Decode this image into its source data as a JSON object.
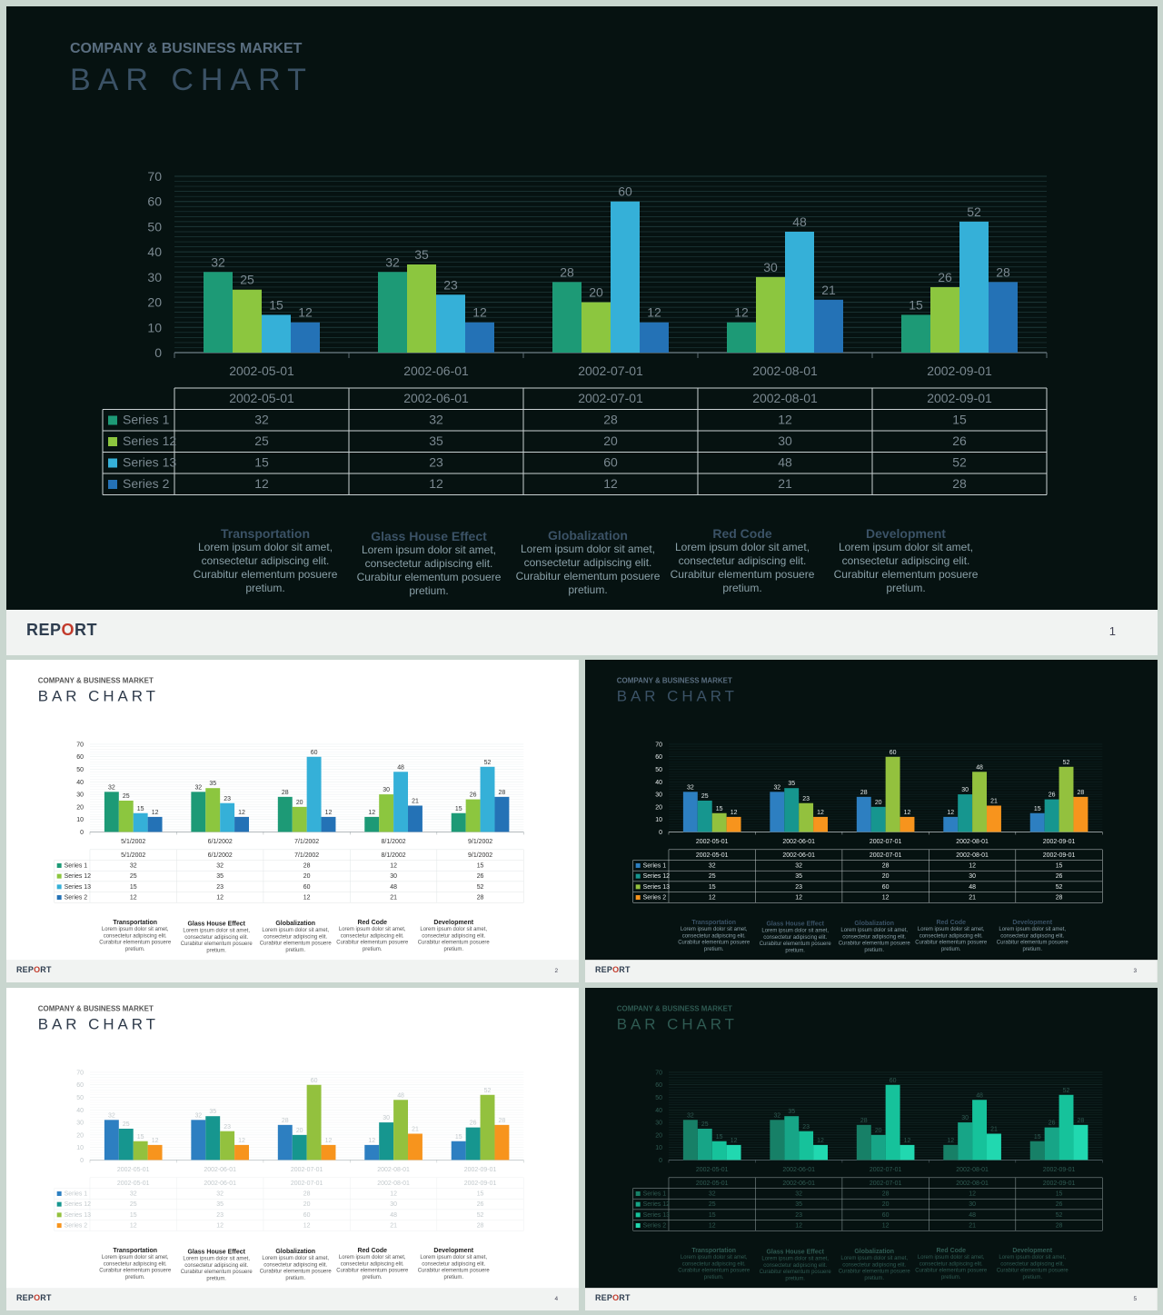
{
  "deck": {
    "subtitle": "COMPANY & BUSINESS MARKET",
    "title": "BAR CHART",
    "brand_prefix": "REP",
    "brand_o": "O",
    "brand_suffix": "RT",
    "columns": [
      {
        "title": "Transportation",
        "body": "Lorem ipsum dolor sit amet, consectetur adipiscing elit. Curabitur elementum posuere pretium."
      },
      {
        "title": "Glass House Effect",
        "body": "Lorem ipsum dolor sit amet, consectetur adipiscing elit. Curabitur elementum posuere pretium."
      },
      {
        "title": "Globalization",
        "body": "Lorem ipsum dolor sit amet, consectetur adipiscing elit. Curabitur elementum posuere pretium."
      },
      {
        "title": "Red Code",
        "body": "Lorem ipsum dolor sit amet, consectetur adipiscing elit. Curabitur elementum posuere pretium."
      },
      {
        "title": "Development",
        "body": "Lorem ipsum dolor sit amet, consectetur adipiscing elit. Curabitur elementum posuere pretium."
      }
    ]
  },
  "slides": [
    {
      "page": "1",
      "theme": "dark",
      "categories": [
        "2002-05-01",
        "2002-06-01",
        "2002-07-01",
        "2002-08-01",
        "2002-09-01"
      ],
      "colors": [
        "#1d9a76",
        "#8cc63f",
        "#35b0d8",
        "#2472b6"
      ],
      "axis_color": "#5f6e75",
      "grid_color": "#1f3a3a",
      "table_color": "#c9d1d3",
      "text_color": "#7a8890"
    },
    {
      "page": "2",
      "theme": "light",
      "categories": [
        "5/1/2002",
        "6/1/2002",
        "7/1/2002",
        "8/1/2002",
        "9/1/2002"
      ],
      "colors": [
        "#1d9a76",
        "#8cc63f",
        "#35b0d8",
        "#2472b6"
      ],
      "axis_color": "#9aa3a6",
      "grid_color": "#e7ecee",
      "table_color": "#e0e4e6",
      "text_color": "#333333"
    },
    {
      "page": "3",
      "theme": "dark",
      "categories": [
        "2002-05-01",
        "2002-06-01",
        "2002-07-01",
        "2002-08-01",
        "2002-09-01"
      ],
      "colors": [
        "#2d7fc1",
        "#16968f",
        "#93c13e",
        "#f7941d"
      ],
      "axis_color": "#c0c8ca",
      "grid_color": "#13292a",
      "table_color": "#c9d1d3",
      "text_color": "#e6ebec"
    },
    {
      "page": "4",
      "theme": "light",
      "categories": [
        "2002-05-01",
        "2002-06-01",
        "2002-07-01",
        "2002-08-01",
        "2002-09-01"
      ],
      "colors": [
        "#2d7fc1",
        "#16968f",
        "#93c13e",
        "#f7941d"
      ],
      "axis_color": "#b7bfc2",
      "grid_color": "#eef1f2",
      "table_color": "#eceff0",
      "text_color": "#c2c9cc"
    },
    {
      "page": "5",
      "theme": "dark",
      "categories": [
        "2002-05-01",
        "2002-06-01",
        "2002-07-01",
        "2002-08-01",
        "2002-09-01"
      ],
      "colors": [
        "#178067",
        "#17a587",
        "#16c29b",
        "#21d8b0"
      ],
      "axis_color": "#5f6e75",
      "grid_color": "#1b3432",
      "table_color": "#98a6a8",
      "text_color": "#2f5a52"
    }
  ],
  "chart_data": {
    "type": "bar",
    "categories": [
      "2002-05-01",
      "2002-06-01",
      "2002-07-01",
      "2002-08-01",
      "2002-09-01"
    ],
    "series": [
      {
        "name": "Series 1",
        "values": [
          32,
          32,
          28,
          12,
          15
        ]
      },
      {
        "name": "Series 12",
        "values": [
          25,
          35,
          20,
          30,
          26
        ]
      },
      {
        "name": "Series 13",
        "values": [
          15,
          23,
          60,
          48,
          52
        ]
      },
      {
        "name": "Series 2",
        "values": [
          12,
          12,
          12,
          21,
          28
        ]
      }
    ],
    "ylim": [
      0,
      70
    ],
    "yticks": [
      0,
      10,
      20,
      30,
      40,
      50,
      60,
      70
    ],
    "grid": true,
    "data_table": true
  }
}
